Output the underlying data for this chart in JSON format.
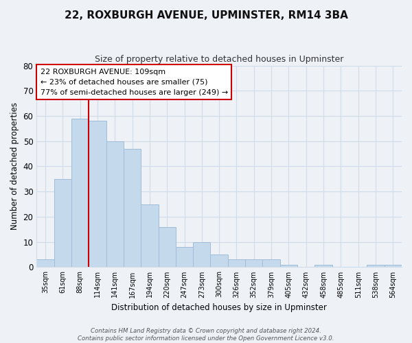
{
  "title": "22, ROXBURGH AVENUE, UPMINSTER, RM14 3BA",
  "subtitle": "Size of property relative to detached houses in Upminster",
  "xlabel": "Distribution of detached houses by size in Upminster",
  "ylabel": "Number of detached properties",
  "bin_labels": [
    "35sqm",
    "61sqm",
    "88sqm",
    "114sqm",
    "141sqm",
    "167sqm",
    "194sqm",
    "220sqm",
    "247sqm",
    "273sqm",
    "300sqm",
    "326sqm",
    "352sqm",
    "379sqm",
    "405sqm",
    "432sqm",
    "458sqm",
    "485sqm",
    "511sqm",
    "538sqm",
    "564sqm"
  ],
  "bar_heights": [
    3,
    35,
    59,
    58,
    50,
    47,
    25,
    16,
    8,
    10,
    5,
    3,
    3,
    3,
    1,
    0,
    1,
    0,
    0,
    1,
    1
  ],
  "bar_color": "#c5d9ed",
  "bar_edge_color": "#a0bcd8",
  "vline_color": "#cc0000",
  "annotation_text": "22 ROXBURGH AVENUE: 109sqm\n← 23% of detached houses are smaller (75)\n77% of semi-detached houses are larger (249) →",
  "annotation_box_color": "#ffffff",
  "annotation_box_edge": "#cc0000",
  "ylim": [
    0,
    80
  ],
  "yticks": [
    0,
    10,
    20,
    30,
    40,
    50,
    60,
    70,
    80
  ],
  "footnote": "Contains HM Land Registry data © Crown copyright and database right 2024.\nContains public sector information licensed under the Open Government Licence v3.0.",
  "background_color": "#eef2f7",
  "grid_color": "#d0dce8"
}
